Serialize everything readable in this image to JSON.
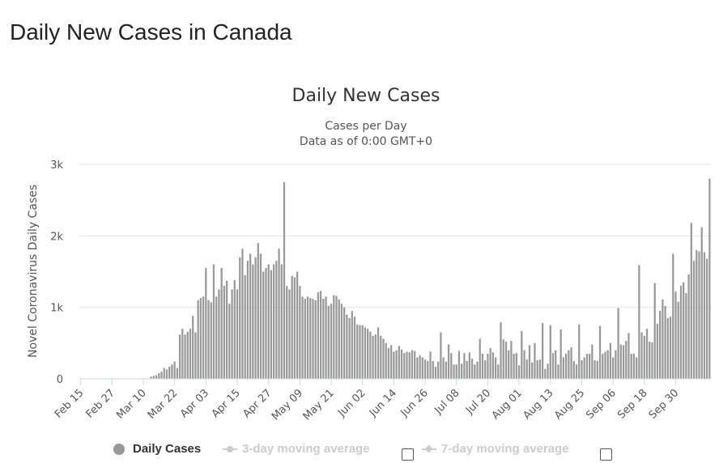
{
  "page": {
    "heading": "Daily New Cases in Canada"
  },
  "chart_data": {
    "type": "bar",
    "title": "Daily New Cases",
    "subtitle": [
      "Cases per Day",
      "Data as of 0:00 GMT+0"
    ],
    "ylabel": "Novel Coronavirus Daily Cases",
    "xlabel": "",
    "ylim": [
      0,
      3000
    ],
    "yticks": [
      {
        "value": 0,
        "label": "0"
      },
      {
        "value": 1000,
        "label": "1k"
      },
      {
        "value": 2000,
        "label": "2k"
      },
      {
        "value": 3000,
        "label": "3k"
      }
    ],
    "grid": true,
    "bar_color": "#999999",
    "start_date": "Feb 15",
    "x_tick_labels": [
      "Feb 15",
      "Feb 27",
      "Mar 10",
      "Mar 22",
      "Apr 03",
      "Apr 15",
      "Apr 27",
      "May 09",
      "May 21",
      "Jun 02",
      "Jun 14",
      "Jun 26",
      "Jul 08",
      "Jul 20",
      "Aug 01",
      "Aug 13",
      "Aug 25",
      "Sep 06",
      "Sep 18",
      "Sep 30"
    ],
    "series": [
      {
        "name": "Daily Cases",
        "values": [
          0,
          0,
          0,
          0,
          0,
          0,
          0,
          0,
          0,
          0,
          0,
          0,
          0,
          0,
          0,
          0,
          0,
          0,
          0,
          0,
          0,
          0,
          0,
          0,
          0,
          0,
          0,
          30,
          40,
          50,
          80,
          100,
          150,
          130,
          170,
          200,
          240,
          150,
          620,
          700,
          620,
          660,
          700,
          880,
          650,
          1100,
          1130,
          1150,
          1550,
          1100,
          1070,
          1600,
          1150,
          1250,
          1550,
          1300,
          1370,
          1050,
          1250,
          1380,
          1250,
          1700,
          1820,
          1450,
          1650,
          1750,
          1600,
          1700,
          1900,
          1750,
          1500,
          1550,
          1600,
          1520,
          1600,
          1650,
          1820,
          1600,
          2750,
          1300,
          1250,
          1440,
          1420,
          1500,
          1300,
          1150,
          1120,
          1150,
          1130,
          1120,
          1100,
          1210,
          1230,
          1120,
          1150,
          1020,
          1050,
          1170,
          1160,
          1110,
          1050,
          1000,
          900,
          850,
          950,
          870,
          760,
          750,
          750,
          720,
          700,
          660,
          600,
          620,
          720,
          600,
          560,
          500,
          430,
          470,
          380,
          400,
          460,
          410,
          360,
          380,
          370,
          400,
          390,
          300,
          330,
          300,
          270,
          250,
          380,
          250,
          170,
          240,
          650,
          300,
          240,
          480,
          360,
          200,
          200,
          390,
          210,
          360,
          250,
          370,
          280,
          200,
          240,
          560,
          350,
          260,
          350,
          430,
          370,
          300,
          200,
          790,
          550,
          520,
          400,
          530,
          350,
          360,
          190,
          670,
          400,
          270,
          470,
          230,
          500,
          260,
          270,
          780,
          140,
          210,
          750,
          360,
          400,
          200,
          690,
          300,
          350,
          400,
          440,
          250,
          200,
          760,
          260,
          300,
          350,
          350,
          480,
          260,
          250,
          740,
          350,
          380,
          400,
          500,
          300,
          400,
          990,
          480,
          470,
          530,
          640,
          350,
          350,
          300,
          1590,
          650,
          600,
          700,
          520,
          510,
          1340,
          770,
          950,
          1110,
          1020,
          850,
          870,
          1750,
          1220,
          1080,
          1300,
          1350,
          1200,
          1460,
          2180,
          1650,
          1800,
          1780,
          2120,
          1770,
          1680,
          2800
        ]
      }
    ]
  },
  "legend": {
    "items": [
      {
        "label": "Daily Cases",
        "active": true
      },
      {
        "label": "3-day moving average",
        "active": false
      },
      {
        "label": "7-day moving average",
        "active": false
      }
    ]
  }
}
